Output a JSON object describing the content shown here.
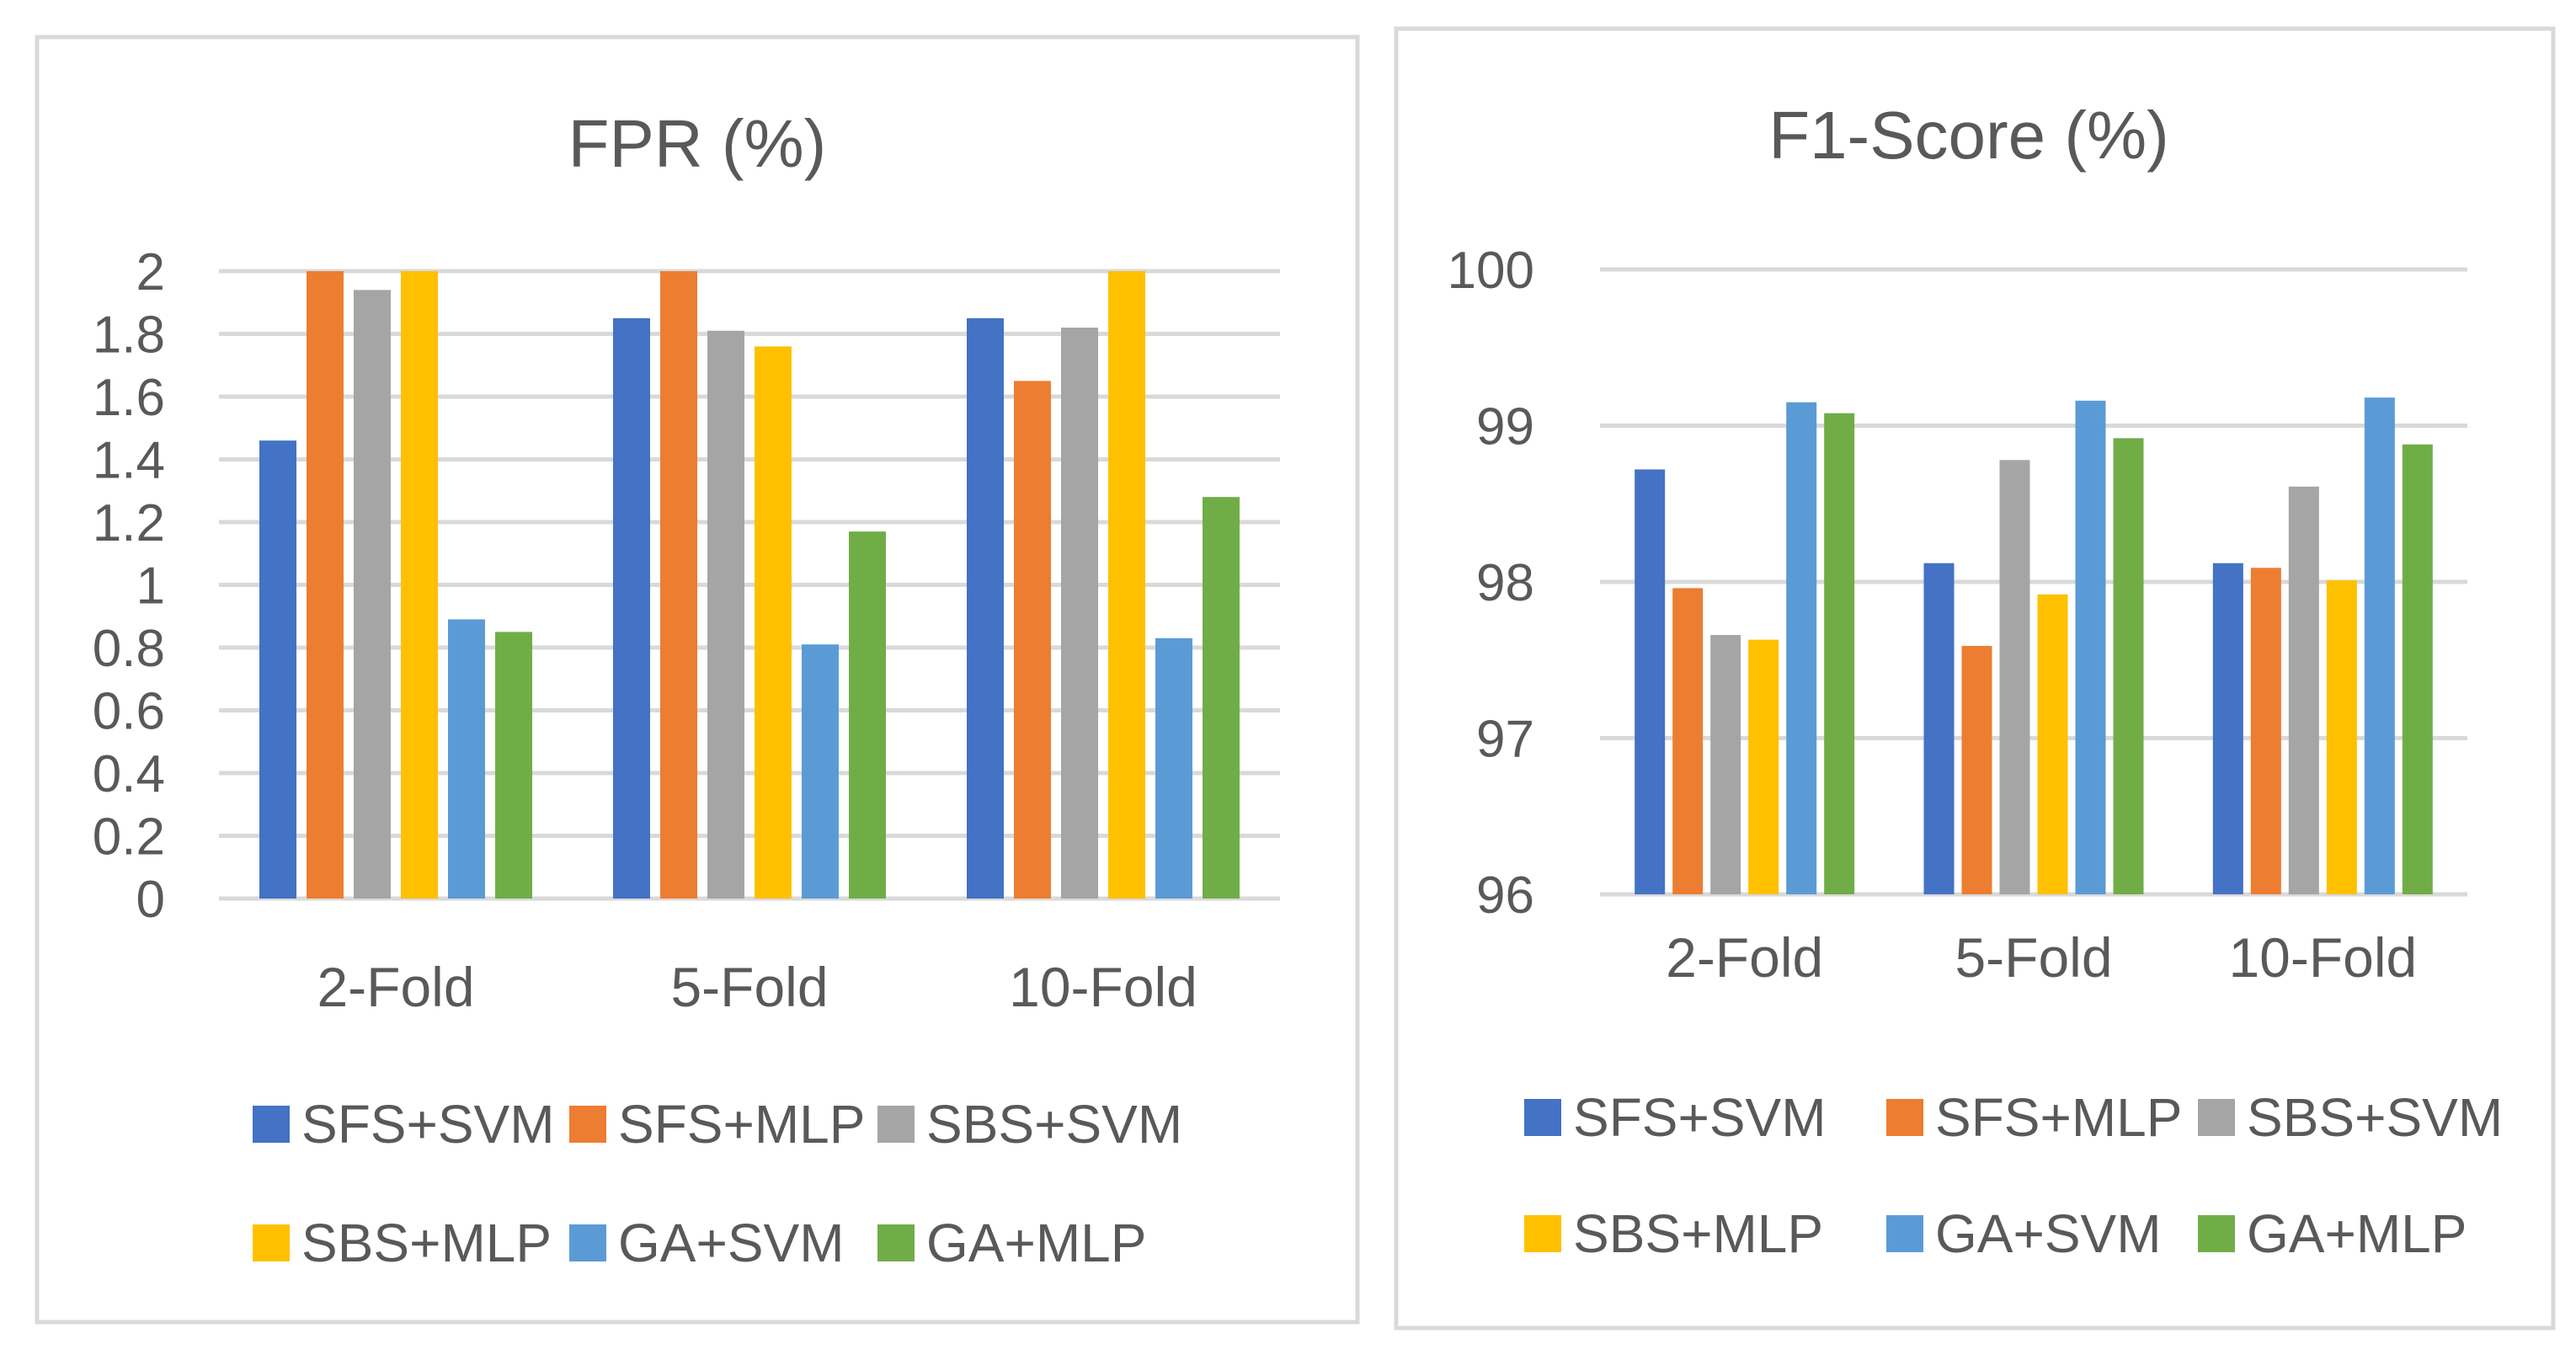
{
  "chart_data": [
    {
      "type": "bar",
      "title": "FPR (%)",
      "xlabel": "",
      "ylabel": "",
      "categories": [
        "2-Fold",
        "5-Fold",
        "10-Fold"
      ],
      "ylim": [
        0,
        2
      ],
      "yticks": [
        "0",
        "0.2",
        "0.4",
        "0.6",
        "0.8",
        "1",
        "1.2",
        "1.4",
        "1.6",
        "1.8",
        "2"
      ],
      "grid": true,
      "legend_position": "bottom",
      "series": [
        {
          "name": "SFS+SVM",
          "color": "#4472c4",
          "values": [
            1.46,
            1.85,
            1.85
          ]
        },
        {
          "name": "SFS+MLP",
          "color": "#ed7d31",
          "values": [
            2.0,
            2.0,
            1.65
          ]
        },
        {
          "name": "SBS+SVM",
          "color": "#a5a5a5",
          "values": [
            1.94,
            1.81,
            1.82
          ]
        },
        {
          "name": "SBS+MLP",
          "color": "#ffc000",
          "values": [
            2.0,
            1.76,
            2.0
          ]
        },
        {
          "name": "GA+SVM",
          "color": "#5b9bd5",
          "values": [
            0.89,
            0.81,
            0.83
          ]
        },
        {
          "name": "GA+MLP",
          "color": "#70ad47",
          "values": [
            0.85,
            1.17,
            1.28
          ]
        }
      ]
    },
    {
      "type": "bar",
      "title": "F1-Score (%)",
      "xlabel": "",
      "ylabel": "",
      "categories": [
        "2-Fold",
        "5-Fold",
        "10-Fold"
      ],
      "ylim": [
        96,
        100
      ],
      "yticks": [
        "96",
        "97",
        "98",
        "99",
        "100"
      ],
      "grid": true,
      "legend_position": "bottom",
      "series": [
        {
          "name": "SFS+SVM",
          "color": "#4472c4",
          "values": [
            98.72,
            98.12,
            98.12
          ]
        },
        {
          "name": "SFS+MLP",
          "color": "#ed7d31",
          "values": [
            97.96,
            97.59,
            98.09
          ]
        },
        {
          "name": "SBS+SVM",
          "color": "#a5a5a5",
          "values": [
            97.66,
            98.78,
            98.61
          ]
        },
        {
          "name": "SBS+MLP",
          "color": "#ffc000",
          "values": [
            97.63,
            97.92,
            98.01
          ]
        },
        {
          "name": "GA+SVM",
          "color": "#5b9bd5",
          "values": [
            99.15,
            99.16,
            99.18
          ]
        },
        {
          "name": "GA+MLP",
          "color": "#70ad47",
          "values": [
            99.08,
            98.92,
            98.88
          ]
        }
      ]
    }
  ]
}
